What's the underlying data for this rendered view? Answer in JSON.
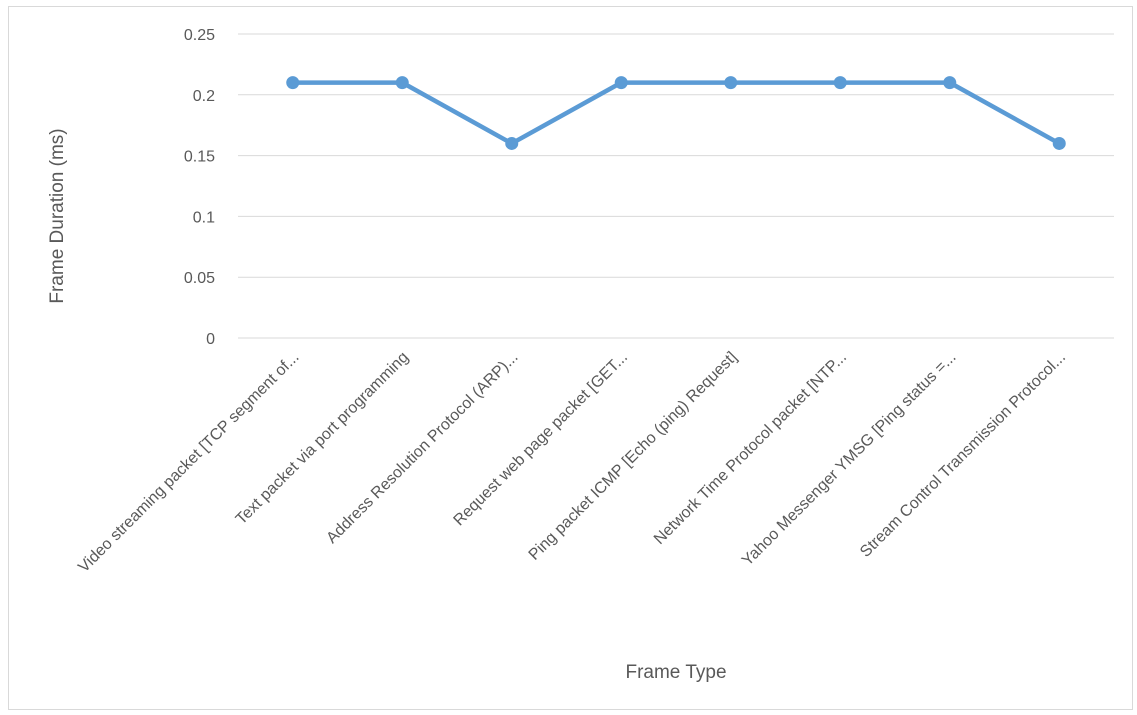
{
  "chart_data": {
    "type": "line",
    "title": "",
    "xlabel": "Frame Type",
    "ylabel": "Frame Duration (ms)",
    "categories": [
      "Video streaming packet [TCP segment of...",
      "Text packet via port programming",
      "Address Resolution Protocol (ARP)...",
      "Request web page packet [GET...",
      "Ping packet ICMP [Echo (ping) Request]",
      "Network Time Protocol packet [NTP...",
      "Yahoo Messenger YMSG [Ping status =...",
      "Stream Control Transmission Protocol..."
    ],
    "series": [
      {
        "values": [
          0.21,
          0.21,
          0.16,
          0.21,
          0.21,
          0.21,
          0.21,
          0.16
        ]
      }
    ],
    "ylim": [
      0,
      0.25
    ],
    "yticks": [
      "0",
      "0.05",
      "0.1",
      "0.15",
      "0.2",
      "0.25"
    ],
    "grid": true,
    "legend": "none",
    "colors": {
      "line": "#5b9bd5",
      "grid": "#d9d9d9",
      "text": "#595959"
    }
  }
}
